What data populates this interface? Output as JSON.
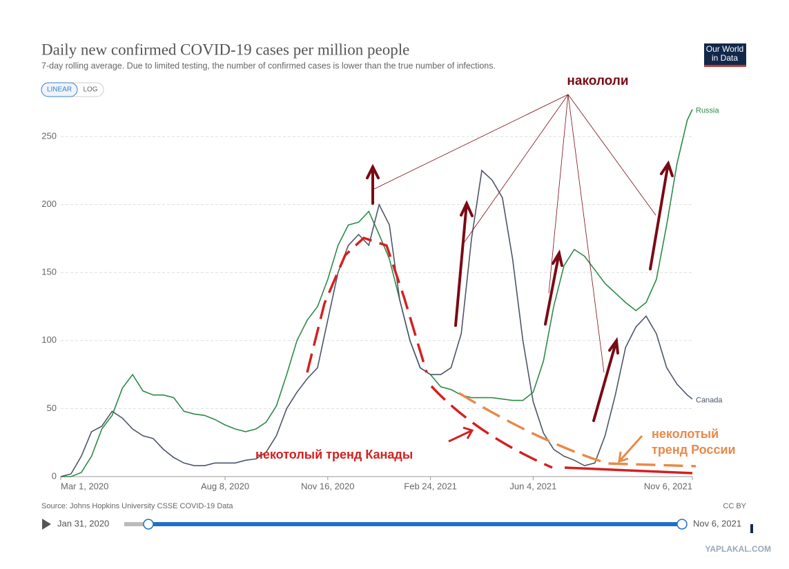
{
  "chart_data": {
    "type": "line",
    "title": "Daily new confirmed COVID-19 cases per million people",
    "subtitle": "7-day rolling average. Due to limited testing, the number of confirmed cases is lower than the true number of infections.",
    "source": "Source: Johns Hopkins University CSSE COVID-19 Data",
    "license": "CC BY",
    "x": [
      "2020-03-01",
      "2020-03-11",
      "2020-03-21",
      "2020-03-31",
      "2020-04-10",
      "2020-04-20",
      "2020-04-30",
      "2020-05-10",
      "2020-05-20",
      "2020-05-30",
      "2020-06-09",
      "2020-06-19",
      "2020-06-29",
      "2020-07-09",
      "2020-07-19",
      "2020-07-29",
      "2020-08-08",
      "2020-08-18",
      "2020-08-28",
      "2020-09-07",
      "2020-09-17",
      "2020-09-27",
      "2020-10-07",
      "2020-10-17",
      "2020-10-27",
      "2020-11-06",
      "2020-11-16",
      "2020-11-26",
      "2020-12-06",
      "2020-12-16",
      "2020-12-26",
      "2021-01-05",
      "2021-01-15",
      "2021-01-25",
      "2021-02-04",
      "2021-02-14",
      "2021-02-24",
      "2021-03-06",
      "2021-03-16",
      "2021-03-26",
      "2021-04-05",
      "2021-04-15",
      "2021-04-25",
      "2021-05-05",
      "2021-05-15",
      "2021-05-25",
      "2021-06-04",
      "2021-06-14",
      "2021-06-24",
      "2021-07-04",
      "2021-07-14",
      "2021-07-24",
      "2021-08-03",
      "2021-08-13",
      "2021-08-23",
      "2021-09-02",
      "2021-09-12",
      "2021-09-22",
      "2021-10-02",
      "2021-10-12",
      "2021-10-22",
      "2021-11-01",
      "2021-11-06"
    ],
    "series": [
      {
        "name": "Russia",
        "color": "#2b8a47",
        "values": [
          0,
          0,
          3,
          15,
          35,
          45,
          65,
          75,
          63,
          60,
          60,
          58,
          48,
          46,
          45,
          42,
          38,
          35,
          33,
          35,
          40,
          52,
          75,
          100,
          115,
          125,
          145,
          170,
          185,
          187,
          195,
          178,
          160,
          130,
          100,
          80,
          75,
          66,
          64,
          60,
          58,
          58,
          58,
          57,
          56,
          56,
          62,
          85,
          125,
          155,
          167,
          162,
          152,
          142,
          135,
          128,
          122,
          128,
          145,
          185,
          230,
          262,
          270
        ]
      },
      {
        "name": "Canada",
        "color": "#4b5567",
        "values": [
          0,
          2,
          15,
          33,
          37,
          48,
          43,
          35,
          30,
          28,
          20,
          14,
          10,
          8,
          8,
          10,
          10,
          10,
          12,
          13,
          18,
          30,
          50,
          62,
          72,
          80,
          115,
          150,
          170,
          178,
          170,
          200,
          185,
          130,
          100,
          80,
          75,
          75,
          80,
          105,
          175,
          225,
          218,
          205,
          160,
          100,
          55,
          32,
          20,
          15,
          12,
          8,
          10,
          30,
          60,
          95,
          110,
          118,
          105,
          80,
          68,
          60,
          57
        ]
      }
    ],
    "xlim": [
      "2020-03-01",
      "2021-11-06"
    ],
    "xticks": [
      {
        "value": "2020-03-01",
        "label": "Mar 1, 2020"
      },
      {
        "value": "2020-08-08",
        "label": "Aug 8, 2020"
      },
      {
        "value": "2020-11-16",
        "label": "Nov 16, 2020"
      },
      {
        "value": "2021-02-24",
        "label": "Feb 24, 2021"
      },
      {
        "value": "2021-06-04",
        "label": "Jun 4, 2021"
      },
      {
        "value": "2021-11-06",
        "label": "Nov 6, 2021"
      }
    ],
    "ylim": [
      0,
      250
    ],
    "yticks": [
      0,
      50,
      100,
      150,
      200,
      250
    ],
    "grid": true
  },
  "logo": [
    "Our World",
    "in Data"
  ],
  "scale_buttons": [
    "LINEAR",
    "LOG"
  ],
  "timeline": {
    "start": "Jan 31, 2020",
    "end": "Nov 6, 2021"
  },
  "annotations": {
    "vaccinated": "накололи",
    "canada_trend": "некотолый тренд Канады",
    "russia_trend": [
      "неколотый",
      "тренд России"
    ]
  },
  "watermark": "YAPLAKAL.COM"
}
